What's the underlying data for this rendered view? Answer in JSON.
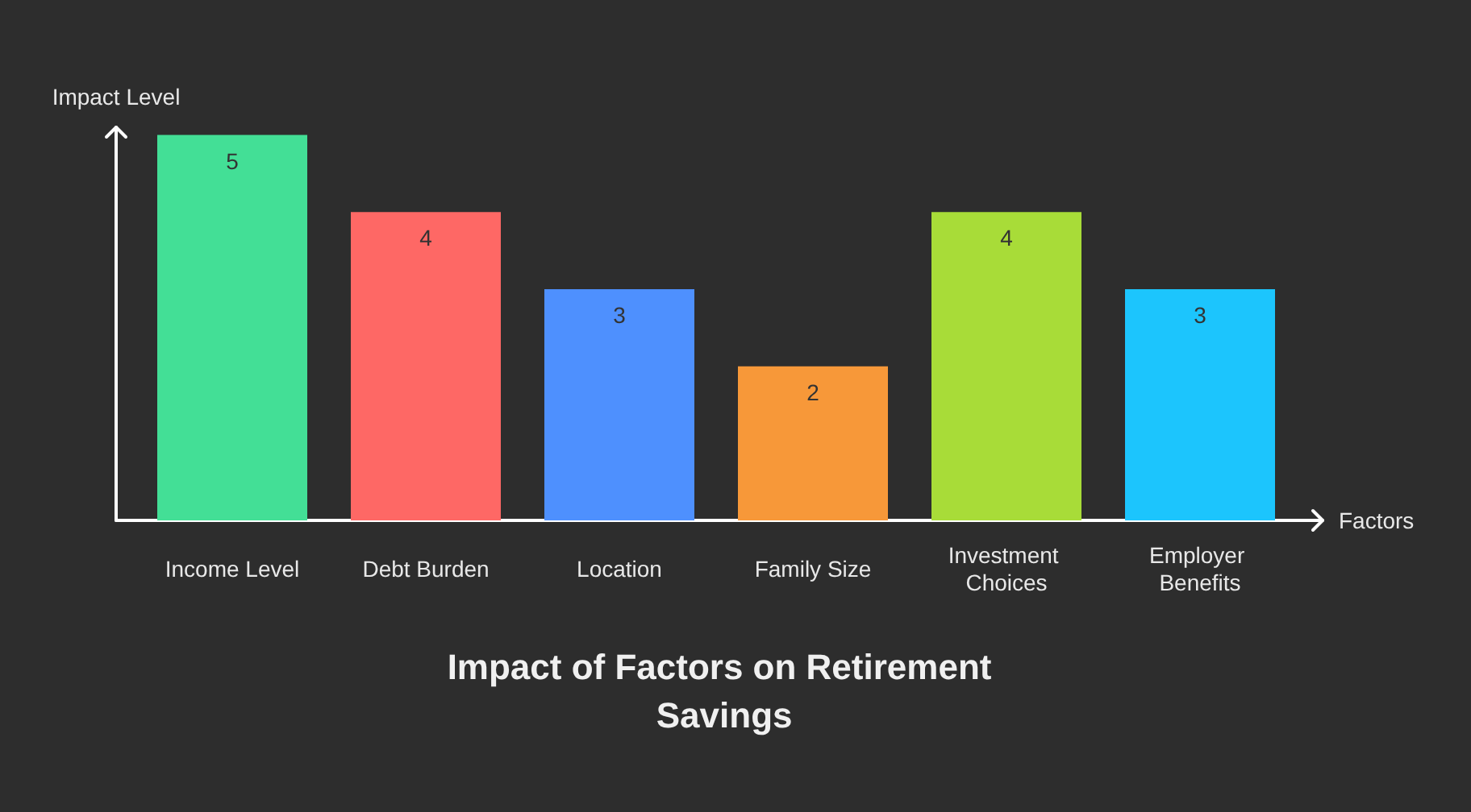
{
  "chart_data": {
    "type": "bar",
    "title": "Impact of Factors on Retirement Savings",
    "xlabel": "Factors",
    "ylabel": "Impact Level",
    "categories": [
      "Income Level",
      "Debt Burden",
      "Location",
      "Family Size",
      "Investment Choices",
      "Employer Benefits"
    ],
    "values": [
      5,
      4,
      3,
      2,
      4,
      3
    ],
    "colors": [
      "#43df96",
      "#fe6865",
      "#4e90fe",
      "#f79839",
      "#a8dc38",
      "#1cc5fd"
    ],
    "ylim": [
      0,
      5.1
    ],
    "data_labels": true,
    "tick_labels": "x",
    "grid": false
  }
}
